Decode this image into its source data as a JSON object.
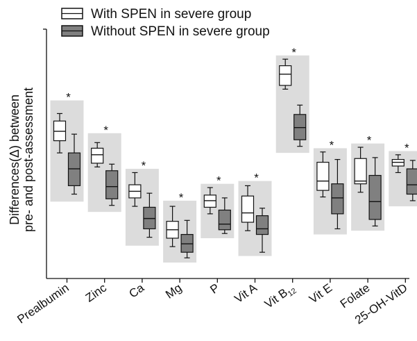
{
  "chart_data": {
    "type": "box",
    "title": "",
    "ylabel_line1": "Differences(Δ) between",
    "ylabel_line2": "pre- and post-assessment",
    "xlabel": "",
    "legend_placement": "top-left",
    "significance_marker": "*",
    "series": [
      {
        "name": "With SPEN in severe group",
        "fill": "#ffffff"
      },
      {
        "name": "Without SPEN in severe group",
        "fill": "#808080"
      }
    ],
    "categories": [
      "Prealbumin",
      "Zinc",
      "Ca",
      "Mg",
      "P",
      "Vit A",
      "Vit B12",
      "Vit E",
      "Folate",
      "25-OH-VitD"
    ],
    "boxes": [
      {
        "category": "Prealbumin",
        "series": 0,
        "min": 5.9,
        "q1": 6.55,
        "median": 7.05,
        "q3": 7.6,
        "max": 8.0
      },
      {
        "category": "Prealbumin",
        "series": 1,
        "min": 3.7,
        "q1": 4.15,
        "median": 5.05,
        "q3": 5.9,
        "max": 6.9
      },
      {
        "category": "Zinc",
        "series": 0,
        "min": 5.15,
        "q1": 5.35,
        "median": 5.8,
        "q3": 6.15,
        "max": 6.45
      },
      {
        "category": "Zinc",
        "series": 1,
        "min": 3.1,
        "q1": 3.45,
        "median": 4.1,
        "q3": 4.95,
        "max": 5.3
      },
      {
        "category": "Ca",
        "series": 0,
        "min": 3.05,
        "q1": 3.5,
        "median": 3.85,
        "q3": 4.2,
        "max": 4.85
      },
      {
        "category": "Ca",
        "series": 1,
        "min": 1.4,
        "q1": 1.85,
        "median": 2.4,
        "q3": 3.0,
        "max": 3.75
      },
      {
        "category": "Mg",
        "series": 0,
        "min": 0.9,
        "q1": 1.35,
        "median": 1.8,
        "q3": 2.25,
        "max": 3.05
      },
      {
        "category": "Mg",
        "series": 1,
        "min": 0.3,
        "q1": 0.6,
        "median": 1.05,
        "q3": 1.55,
        "max": 2.3
      },
      {
        "category": "P",
        "series": 0,
        "min": 2.65,
        "q1": 3.0,
        "median": 3.35,
        "q3": 3.65,
        "max": 4.05
      },
      {
        "category": "P",
        "series": 1,
        "min": 1.6,
        "q1": 1.8,
        "median": 2.1,
        "q3": 2.85,
        "max": 3.5
      },
      {
        "category": "Vit A",
        "series": 0,
        "min": 1.75,
        "q1": 2.2,
        "median": 2.7,
        "q3": 3.6,
        "max": 4.15
      },
      {
        "category": "Vit A",
        "series": 1,
        "min": 0.6,
        "q1": 1.55,
        "median": 1.85,
        "q3": 2.55,
        "max": 2.95
      },
      {
        "category": "Vit B12",
        "series": 0,
        "min": 9.3,
        "q1": 9.5,
        "median": 10.1,
        "q3": 10.55,
        "max": 10.9
      },
      {
        "category": "Vit B12",
        "series": 1,
        "min": 6.25,
        "q1": 6.6,
        "median": 7.25,
        "q3": 7.95,
        "max": 8.45
      },
      {
        "category": "Vit E",
        "series": 0,
        "min": 3.55,
        "q1": 3.9,
        "median": 4.4,
        "q3": 5.4,
        "max": 5.95
      },
      {
        "category": "Vit E",
        "series": 1,
        "min": 1.85,
        "q1": 2.65,
        "median": 3.5,
        "q3": 4.25,
        "max": 5.55
      },
      {
        "category": "Folate",
        "series": 0,
        "min": 3.8,
        "q1": 4.25,
        "median": 4.4,
        "q3": 5.6,
        "max": 6.2
      },
      {
        "category": "Folate",
        "series": 1,
        "min": 2.0,
        "q1": 2.35,
        "median": 3.3,
        "q3": 4.7,
        "max": 5.65
      },
      {
        "category": "25-OH-VitD",
        "series": 0,
        "min": 4.85,
        "q1": 5.2,
        "median": 5.4,
        "q3": 5.55,
        "max": 5.8
      },
      {
        "category": "25-OH-VitD",
        "series": 1,
        "min": 3.35,
        "q1": 3.7,
        "median": 4.2,
        "q3": 5.05,
        "max": 5.5
      }
    ],
    "groups": [
      {
        "category": "Prealbumin",
        "low": 3.3,
        "high": 8.7
      },
      {
        "category": "Zinc",
        "low": 2.75,
        "high": 6.95
      },
      {
        "category": "Ca",
        "low": 0.95,
        "high": 5.05
      },
      {
        "category": "Mg",
        "low": 0.05,
        "high": 3.35
      },
      {
        "category": "P",
        "low": 1.35,
        "high": 4.25
      },
      {
        "category": "Vit A",
        "low": 0.4,
        "high": 4.4
      },
      {
        "category": "Vit B12",
        "low": 5.9,
        "high": 11.1
      },
      {
        "category": "Vit E",
        "low": 1.55,
        "high": 6.15
      },
      {
        "category": "Folate",
        "low": 1.75,
        "high": 6.4
      },
      {
        "category": "25-OH-VitD",
        "low": 3.05,
        "high": 6.0
      }
    ],
    "ylim": [
      -0.8,
      12.5
    ],
    "y_ticks_shown": false,
    "grid": false
  }
}
